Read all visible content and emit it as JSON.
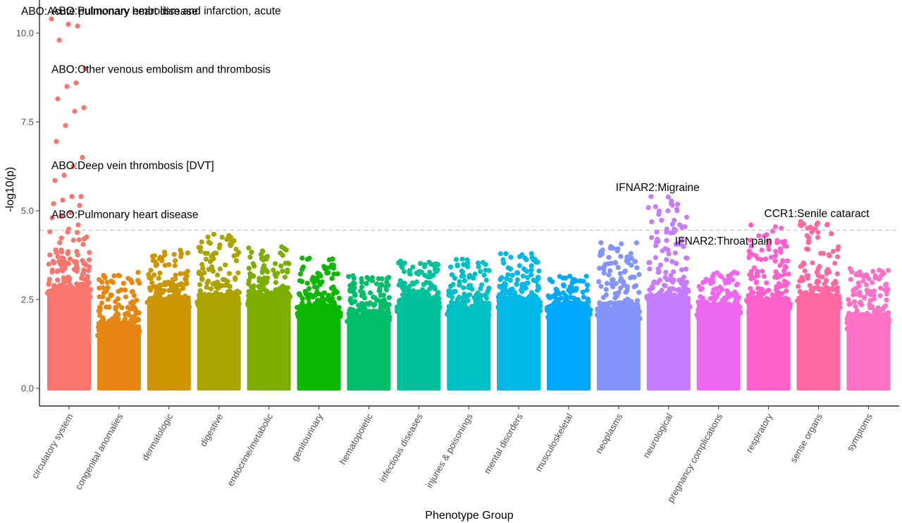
{
  "chart_data": {
    "type": "scatter",
    "xlabel": "Phenotype Group",
    "ylabel": "-log10(p)",
    "ylim": [
      0,
      11
    ],
    "yticks": [
      0.0,
      2.5,
      5.0,
      7.5,
      10.0
    ],
    "ytick_labels": [
      "0.0",
      "2.5",
      "5.0",
      "7.5",
      "10.0"
    ],
    "threshold": 4.45,
    "grid": false,
    "legend": "none",
    "categories": [
      "circulatory system",
      "congenital anomalies",
      "dermatologic",
      "digestive",
      "endocrine/metabolic",
      "genitourinary",
      "hematopoietic",
      "infectious diseases",
      "injuries & poisonings",
      "mental disorders",
      "musculoskeletal",
      "neoplasms",
      "neurological",
      "pregnancy complications",
      "respiratory",
      "sense organs",
      "symptoms"
    ],
    "colors": [
      "#F8766D",
      "#E68613",
      "#CD9600",
      "#ABA300",
      "#7CAE00",
      "#0CB702",
      "#00BE67",
      "#00C19A",
      "#00BFC4",
      "#00B8E7",
      "#00A9FF",
      "#8494FF",
      "#C77CFF",
      "#ED68ED",
      "#FF61CC",
      "#FF68A1",
      "#FF71C5"
    ],
    "dense_max": [
      2.8,
      1.8,
      2.5,
      2.6,
      2.6,
      2.3,
      2.1,
      2.5,
      2.3,
      2.5,
      2.3,
      2.3,
      2.6,
      2.3,
      2.5,
      2.6,
      2.0
    ],
    "upper_max": [
      4.5,
      3.3,
      3.9,
      4.4,
      4.0,
      3.7,
      3.2,
      3.6,
      3.7,
      3.8,
      3.2,
      4.1,
      5.4,
      3.3,
      4.6,
      4.7,
      3.4
    ],
    "top_points": [
      {
        "cat": 0,
        "values": [
          10.4,
          10.2,
          10.25,
          9.8,
          9.0,
          8.6,
          8.5,
          8.15,
          7.9,
          7.8,
          7.4,
          6.95,
          6.5,
          6.25,
          6.0,
          5.85,
          5.4,
          5.4,
          5.3,
          5.2,
          5.15,
          4.95,
          4.85,
          4.8,
          4.6
        ]
      },
      {
        "cat": 12,
        "values": [
          5.4,
          5.0,
          5.0,
          4.9,
          4.55,
          4.45,
          4.4,
          4.2,
          4.0
        ]
      },
      {
        "cat": 14,
        "values": [
          4.6,
          4.1
        ]
      },
      {
        "cat": 15,
        "values": [
          4.7,
          4.6,
          4.25,
          4.15
        ]
      },
      {
        "cat": 11,
        "values": [
          4.1,
          3.7
        ]
      }
    ],
    "annotations": [
      {
        "text": "ABO:Acute pulmonary heart disease",
        "cat": 0,
        "value": 10.4
      },
      {
        "text": "ABO:Pulmonary embolism and infarction, acute",
        "cat": 0,
        "value": 10.25
      },
      {
        "text": "ABO:Other venous embolism and thrombosis",
        "cat": 0,
        "value": 9.0
      },
      {
        "text": "ABO:Deep vein thrombosis [DVT]",
        "cat": 0,
        "value": 6.25
      },
      {
        "text": "ABO:Pulmonary heart disease",
        "cat": 0,
        "value": 4.85
      },
      {
        "text": "IFNAR2:Migraine",
        "cat": 12,
        "value": 5.4
      },
      {
        "text": "IFNAR2:Throat pain",
        "cat": 12,
        "value": 4.4
      },
      {
        "text": "CCR1:Senile cataract",
        "cat": 15,
        "value": 4.7
      }
    ]
  }
}
